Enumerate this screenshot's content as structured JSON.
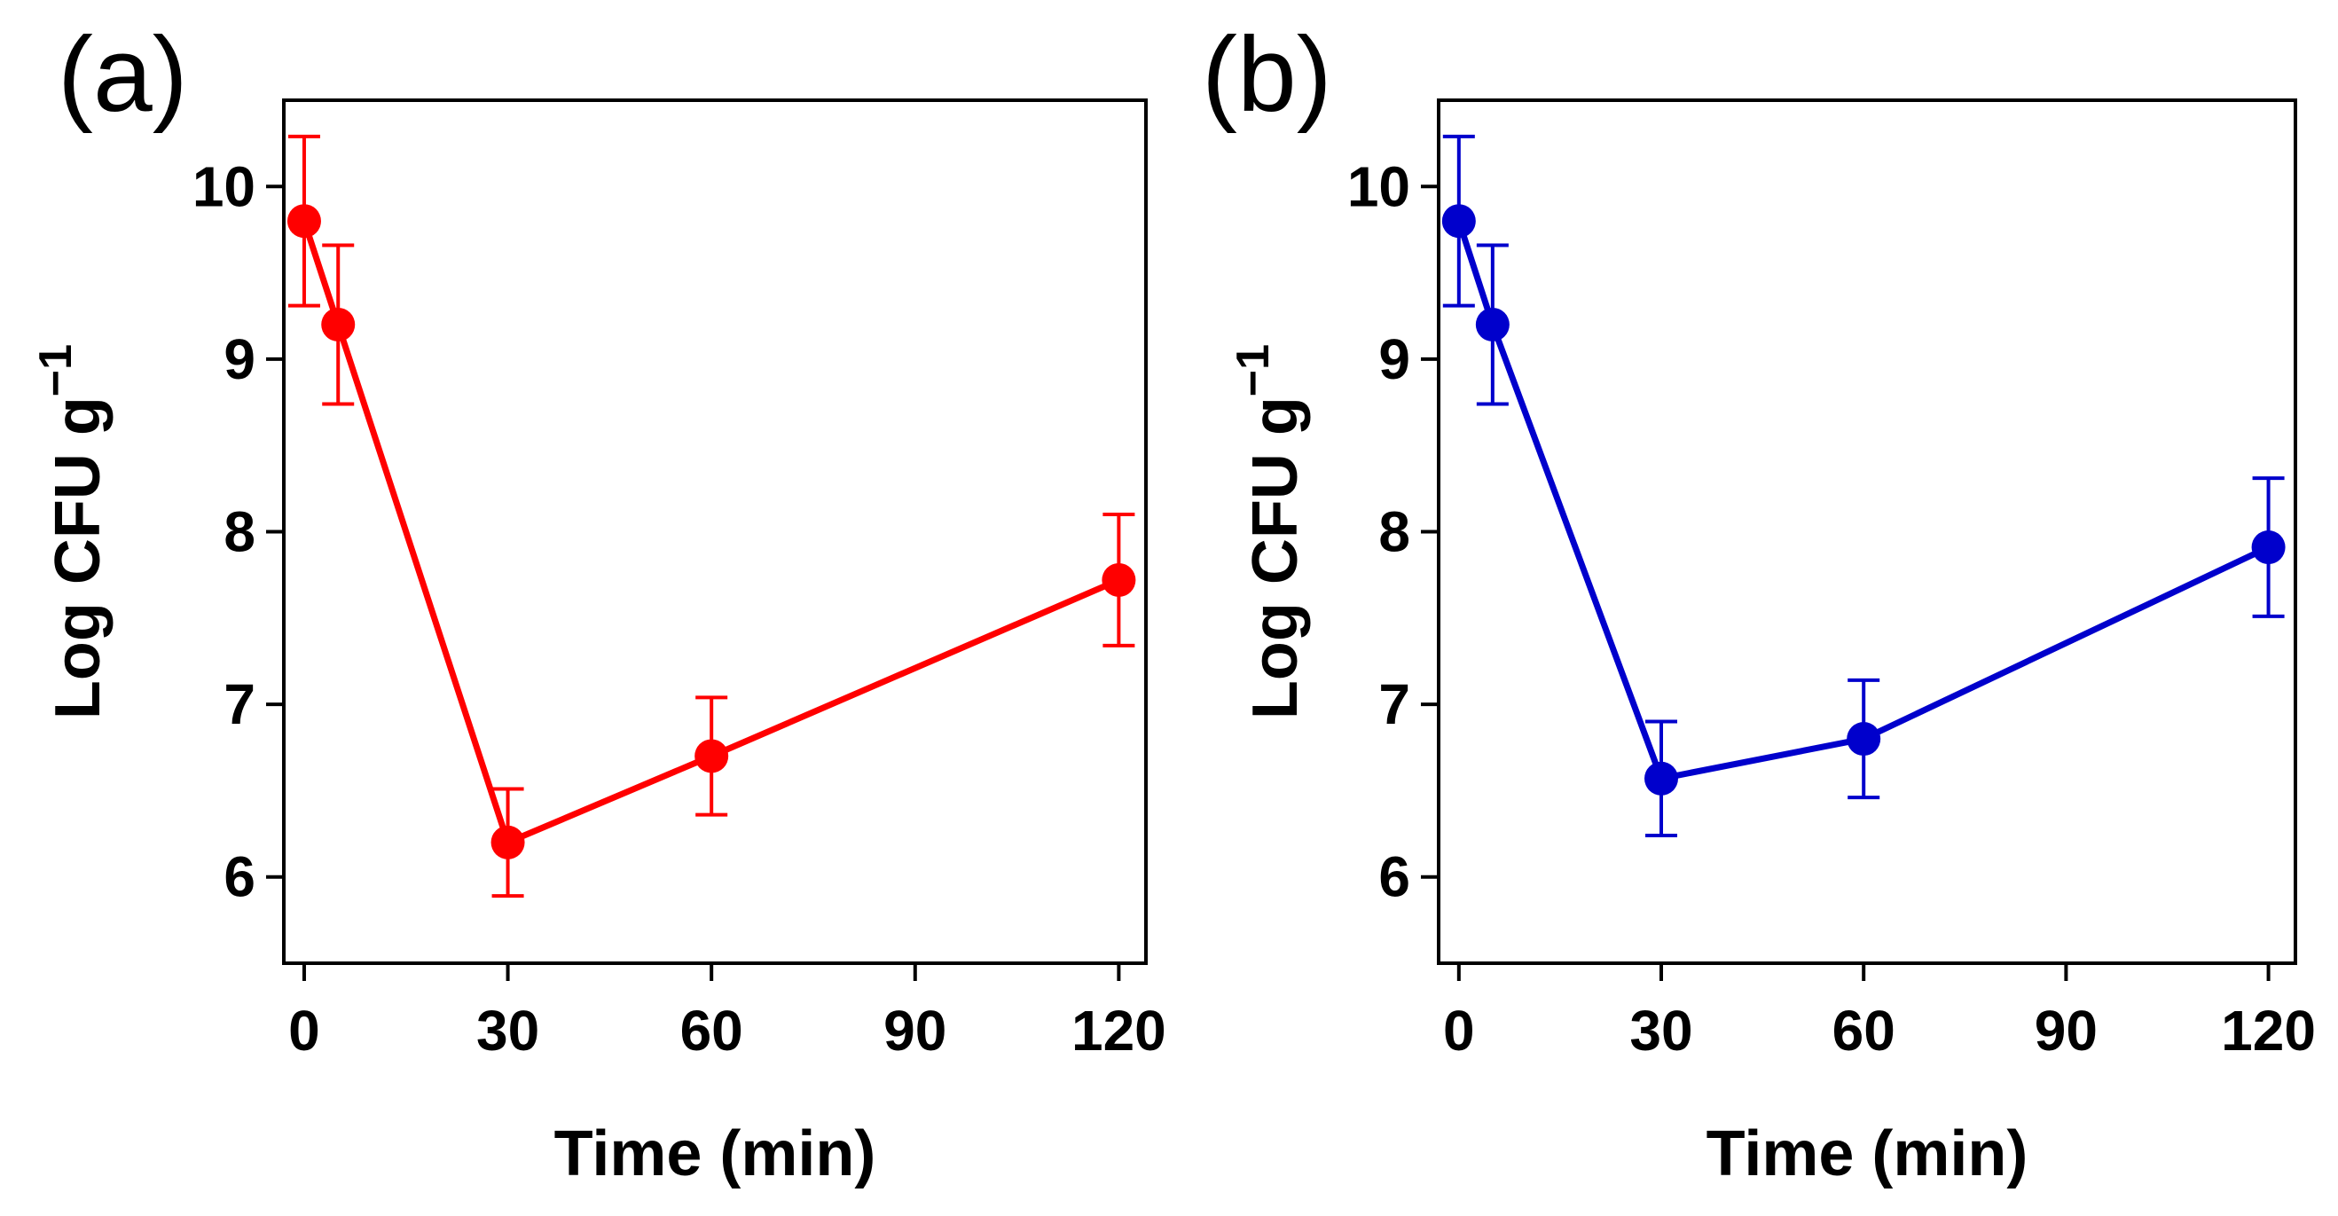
{
  "chart_data": [
    {
      "type": "line",
      "panel_label": "(a)",
      "xlabel": "Time (min)",
      "ylabel": "Log CFU g",
      "ylabel_superscript": "−1",
      "xlim": [
        -3,
        124
      ],
      "ylim": [
        5.5,
        10.5
      ],
      "xticks": [
        0,
        30,
        60,
        90,
        120
      ],
      "yticks": [
        6,
        7,
        8,
        9,
        10
      ],
      "color": "#ff0000",
      "series": [
        {
          "name": "a",
          "x": [
            0,
            5,
            30,
            60,
            120
          ],
          "y": [
            9.8,
            9.2,
            6.2,
            6.7,
            7.72
          ],
          "err": [
            0.49,
            0.46,
            0.31,
            0.34,
            0.38
          ]
        }
      ]
    },
    {
      "type": "line",
      "panel_label": "(b)",
      "xlabel": "Time (min)",
      "ylabel": "Log CFU g",
      "ylabel_superscript": "−1",
      "xlim": [
        -3,
        124
      ],
      "ylim": [
        5.5,
        10.5
      ],
      "xticks": [
        0,
        30,
        60,
        90,
        120
      ],
      "yticks": [
        6,
        7,
        8,
        9,
        10
      ],
      "color": "#0000cc",
      "series": [
        {
          "name": "b",
          "x": [
            0,
            5,
            30,
            60,
            120
          ],
          "y": [
            9.8,
            9.2,
            6.57,
            6.8,
            7.91
          ],
          "err": [
            0.49,
            0.46,
            0.33,
            0.34,
            0.4
          ]
        }
      ]
    }
  ]
}
